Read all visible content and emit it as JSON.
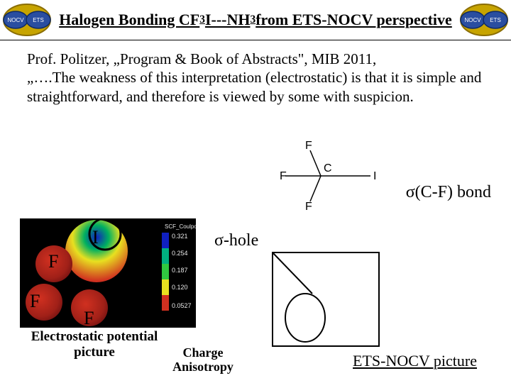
{
  "header": {
    "title_html": "Halogen Bonding CF<sub>3</sub>I---NH<sub>3</sub> from ETS-NOCV perspective",
    "logo": {
      "ring_color": "#c7a400",
      "ring_stroke": "#8a6d00",
      "ellipse_fill": "#2a4ea0",
      "ellipse_stroke": "#0e2a66",
      "label_left": "NOCV",
      "label_right": "ETS",
      "label_color": "#ffffff"
    }
  },
  "body": {
    "line1": "Prof. Politzer, „Program & Book of Abstracts\", MIB 2011,",
    "line2": "„….The weakness of this interpretation (electrostatic) is that it is simple and straightforward, and therefore is viewed by some with suspicion."
  },
  "labels": {
    "sigma_bond": "σ(C-F) bond",
    "sigma_hole": "σ-hole"
  },
  "molecule": {
    "atoms": {
      "F": "F",
      "C": "C",
      "I": "I"
    },
    "line_color": "#000000"
  },
  "esp": {
    "caption_l1": "Electrostatic potential",
    "caption_l2": "picture",
    "atom_labels": {
      "I": "I",
      "F1": "F",
      "F2": "F",
      "F3": "F"
    },
    "scale_header": "SCF_Coulpot",
    "scale_ticks": [
      "0.321",
      "0.254",
      "0.187",
      "0.120",
      "0.0527"
    ],
    "colors": {
      "box_bg": "#000000",
      "hot": "#1020c0",
      "cool1": "#00b060",
      "cool2": "#e8e020",
      "cool3": "#d03020",
      "tick_text": "#e7e7e7"
    }
  },
  "etsnocv": {
    "caption": "ETS-NOCV picture"
  },
  "charge": {
    "caption_l1": "Charge",
    "caption_l2": "Anisotropy",
    "box_stroke": "#000000",
    "circle_stroke": "#000000"
  }
}
